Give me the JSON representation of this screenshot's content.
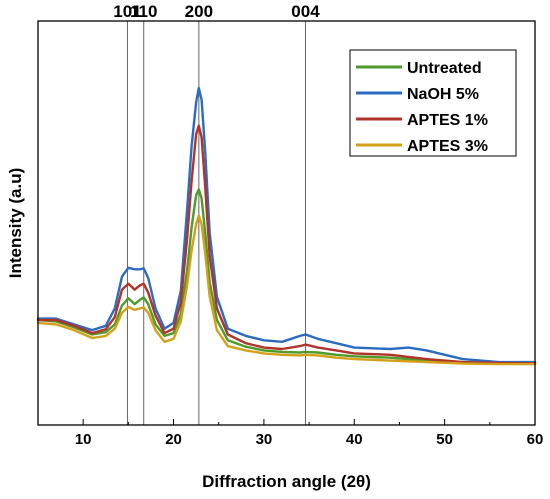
{
  "chart_data": {
    "type": "line",
    "xlabel": "Diffraction angle (2θ)",
    "ylabel": "Intensity (a.u)",
    "xlim": [
      5,
      60
    ],
    "ylim": [
      0,
      100
    ],
    "xticks": [
      10,
      20,
      30,
      40,
      50,
      60
    ],
    "yticks_shown": false,
    "grid": false,
    "legend_position": "top-right",
    "reference_lines": [
      {
        "label": "101",
        "x": 14.9
      },
      {
        "label": "110",
        "x": 16.7
      },
      {
        "label": "200",
        "x": 22.8
      },
      {
        "label": "004",
        "x": 34.6
      }
    ],
    "series": [
      {
        "name": "Untreated",
        "color": "#4e9a2b",
        "x": [
          5,
          7,
          9,
          11,
          12.5,
          13.5,
          14.3,
          15,
          15.7,
          16.3,
          16.7,
          17.2,
          18,
          19,
          20,
          20.8,
          21.5,
          22,
          22.5,
          22.8,
          23.1,
          23.5,
          24,
          24.8,
          26,
          28,
          30,
          32,
          34,
          34.6,
          36,
          38,
          40,
          44,
          48,
          52,
          56,
          60
        ],
        "y": [
          20,
          19.5,
          17.5,
          15,
          15.8,
          18.5,
          25,
          27.5,
          25.5,
          27,
          27.8,
          25.5,
          18.5,
          14.5,
          15.5,
          22,
          37,
          52,
          63,
          65,
          62,
          50,
          33,
          20,
          13,
          10.8,
          9.5,
          9,
          8.8,
          9,
          8.8,
          8,
          7.5,
          7,
          6,
          5.5,
          5.2,
          5
        ]
      },
      {
        "name": "NaOH 5%",
        "color": "#2b6cc0",
        "x": [
          5,
          7,
          9,
          11,
          12.5,
          13.5,
          14.3,
          15,
          15.7,
          16.3,
          16.7,
          17.2,
          18,
          19,
          20,
          20.8,
          21.5,
          22,
          22.5,
          22.8,
          23.1,
          23.5,
          24,
          24.8,
          26,
          28,
          30,
          32,
          34,
          34.6,
          36,
          38,
          40,
          44,
          46,
          48,
          52,
          56,
          60
        ],
        "y": [
          20.5,
          20.5,
          18.5,
          16.5,
          18,
          24,
          35,
          38,
          37.5,
          37.5,
          37.8,
          34.5,
          24,
          17,
          19,
          30,
          58,
          80,
          95,
          100,
          96,
          78,
          50,
          28,
          17,
          14.5,
          13,
          12.5,
          14.5,
          15,
          13.5,
          12,
          10.5,
          10,
          10.5,
          9.5,
          6.5,
          5.5,
          5.5
        ]
      },
      {
        "name": "APTES 1%",
        "color": "#b1332a",
        "x": [
          5,
          7,
          9,
          11,
          12.5,
          13.5,
          14.3,
          15,
          15.7,
          16.3,
          16.7,
          17.2,
          18,
          19,
          20,
          20.8,
          21.5,
          22,
          22.5,
          22.8,
          23.1,
          23.5,
          24,
          24.8,
          26,
          28,
          30,
          32,
          34,
          34.6,
          36,
          38,
          40,
          44,
          48,
          52,
          56,
          60
        ],
        "y": [
          20,
          20,
          18,
          15.5,
          16.8,
          21,
          30.5,
          32.5,
          30.5,
          32,
          32.5,
          29.5,
          21.5,
          15.5,
          17,
          26,
          48,
          68,
          84,
          87,
          83,
          66,
          42,
          24,
          15,
          12,
          10.5,
          10,
          11,
          11.5,
          10.5,
          9.5,
          8.5,
          8,
          6.5,
          5.5,
          5.2,
          5
        ]
      },
      {
        "name": "APTES 3%",
        "color": "#d4a017",
        "x": [
          5,
          7,
          9,
          11,
          12.5,
          13.5,
          14.3,
          15,
          15.7,
          16.3,
          16.7,
          17.2,
          18,
          19,
          20,
          20.8,
          21.5,
          22,
          22.5,
          22.8,
          23.1,
          23.5,
          24,
          24.8,
          26,
          28,
          30,
          32,
          34,
          34.6,
          36,
          38,
          40,
          44,
          48,
          52,
          56,
          60
        ],
        "y": [
          19,
          18.5,
          16.5,
          13.8,
          14.5,
          17,
          22.5,
          24.5,
          23.5,
          24,
          24.3,
          22.5,
          16.5,
          12.5,
          13.5,
          19.5,
          32,
          44,
          53,
          56,
          53,
          43,
          28,
          16.5,
          11,
          9.5,
          8.5,
          8,
          7.8,
          8,
          7.8,
          7,
          6.5,
          6,
          5.5,
          5,
          4.8,
          4.8
        ]
      }
    ]
  }
}
